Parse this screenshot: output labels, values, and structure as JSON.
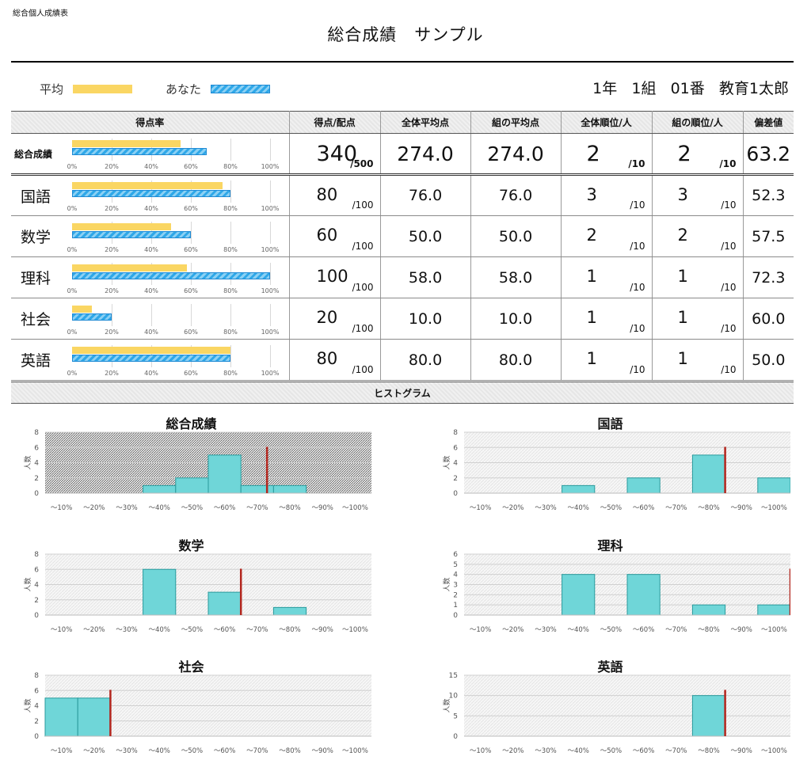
{
  "doc_label": "総合個人成績表",
  "title": "総合成績　サンプル",
  "legend": {
    "avg": "平均",
    "you": "あなた"
  },
  "student": {
    "grade": "1年",
    "class": "1組",
    "number": "01番",
    "name": "教育1太郎"
  },
  "colors": {
    "avg_bar": "#fad663",
    "you_bar": "#2fa8e8",
    "hist_bar": "#6fd6d8",
    "marker": "#b3261e"
  },
  "table": {
    "headers": [
      "",
      "得点率",
      "得点/配点",
      "全体平均点",
      "組の平均点",
      "全体順位/人",
      "組の順位/人",
      "偏差値"
    ],
    "rate_ticks": [
      "0%",
      "20%",
      "40%",
      "60%",
      "80%",
      "100%"
    ],
    "rows": [
      {
        "subject": "総合成績",
        "avg_rate": 54.8,
        "you_rate": 68,
        "score": "340",
        "max": "/500",
        "overall_avg": "274.0",
        "class_avg": "274.0",
        "rank": "2",
        "rank_total": "/10",
        "class_rank": "2",
        "class_total": "/10",
        "deviation": "63.2"
      },
      {
        "subject": "国語",
        "avg_rate": 76,
        "you_rate": 80,
        "score": "80",
        "max": "/100",
        "overall_avg": "76.0",
        "class_avg": "76.0",
        "rank": "3",
        "rank_total": "/10",
        "class_rank": "3",
        "class_total": "/10",
        "deviation": "52.3"
      },
      {
        "subject": "数学",
        "avg_rate": 50,
        "you_rate": 60,
        "score": "60",
        "max": "/100",
        "overall_avg": "50.0",
        "class_avg": "50.0",
        "rank": "2",
        "rank_total": "/10",
        "class_rank": "2",
        "class_total": "/10",
        "deviation": "57.5"
      },
      {
        "subject": "理科",
        "avg_rate": 58,
        "you_rate": 100,
        "score": "100",
        "max": "/100",
        "overall_avg": "58.0",
        "class_avg": "58.0",
        "rank": "1",
        "rank_total": "/10",
        "class_rank": "1",
        "class_total": "/10",
        "deviation": "72.3"
      },
      {
        "subject": "社会",
        "avg_rate": 10,
        "you_rate": 20,
        "score": "20",
        "max": "/100",
        "overall_avg": "10.0",
        "class_avg": "10.0",
        "rank": "1",
        "rank_total": "/10",
        "class_rank": "1",
        "class_total": "/10",
        "deviation": "60.0"
      },
      {
        "subject": "英語",
        "avg_rate": 80,
        "you_rate": 80,
        "score": "80",
        "max": "/100",
        "overall_avg": "80.0",
        "class_avg": "80.0",
        "rank": "1",
        "rank_total": "/10",
        "class_rank": "1",
        "class_total": "/10",
        "deviation": "50.0"
      }
    ]
  },
  "histogram_header": "ヒストグラム",
  "chart_data": [
    {
      "type": "bar",
      "title": "総合成績",
      "ylabel": "人数",
      "categories": [
        "〜10%",
        "〜20%",
        "〜30%",
        "〜40%",
        "〜50%",
        "〜60%",
        "〜70%",
        "〜80%",
        "〜90%",
        "〜100%"
      ],
      "values": [
        0,
        0,
        0,
        1,
        2,
        5,
        1,
        1,
        0,
        0
      ],
      "ylim": [
        0,
        8
      ],
      "yticks": [
        0,
        2,
        4,
        6,
        8
      ],
      "marker_x": 6.8,
      "hatched_background": true
    },
    {
      "type": "bar",
      "title": "国語",
      "ylabel": "人数",
      "categories": [
        "〜10%",
        "〜20%",
        "〜30%",
        "〜40%",
        "〜50%",
        "〜60%",
        "〜70%",
        "〜80%",
        "〜90%",
        "〜100%"
      ],
      "values": [
        0,
        0,
        0,
        1,
        0,
        2,
        0,
        5,
        0,
        2
      ],
      "ylim": [
        0,
        8
      ],
      "yticks": [
        0,
        2,
        4,
        6,
        8
      ],
      "marker_x": 8.0,
      "hatched_background": false
    },
    {
      "type": "bar",
      "title": "数学",
      "ylabel": "人数",
      "categories": [
        "〜10%",
        "〜20%",
        "〜30%",
        "〜40%",
        "〜50%",
        "〜60%",
        "〜70%",
        "〜80%",
        "〜90%",
        "〜100%"
      ],
      "values": [
        0,
        0,
        0,
        6,
        0,
        3,
        0,
        1,
        0,
        0
      ],
      "ylim": [
        0,
        8
      ],
      "yticks": [
        0,
        2,
        4,
        6,
        8
      ],
      "marker_x": 6.0,
      "hatched_background": false
    },
    {
      "type": "bar",
      "title": "理科",
      "ylabel": "人数",
      "categories": [
        "〜10%",
        "〜20%",
        "〜30%",
        "〜40%",
        "〜50%",
        "〜60%",
        "〜70%",
        "〜80%",
        "〜90%",
        "〜100%"
      ],
      "values": [
        0,
        0,
        0,
        4,
        0,
        4,
        0,
        1,
        0,
        1
      ],
      "ylim": [
        0,
        6
      ],
      "yticks": [
        0,
        1,
        2,
        3,
        4,
        5,
        6
      ],
      "marker_x": 10.0,
      "hatched_background": false
    },
    {
      "type": "bar",
      "title": "社会",
      "ylabel": "人数",
      "categories": [
        "〜10%",
        "〜20%",
        "〜30%",
        "〜40%",
        "〜50%",
        "〜60%",
        "〜70%",
        "〜80%",
        "〜90%",
        "〜100%"
      ],
      "values": [
        5,
        5,
        0,
        0,
        0,
        0,
        0,
        0,
        0,
        0
      ],
      "ylim": [
        0,
        8
      ],
      "yticks": [
        0,
        2,
        4,
        6,
        8
      ],
      "marker_x": 2.0,
      "hatched_background": false
    },
    {
      "type": "bar",
      "title": "英語",
      "ylabel": "人数",
      "categories": [
        "〜10%",
        "〜20%",
        "〜30%",
        "〜40%",
        "〜50%",
        "〜60%",
        "〜70%",
        "〜80%",
        "〜90%",
        "〜100%"
      ],
      "values": [
        0,
        0,
        0,
        0,
        0,
        0,
        0,
        10,
        0,
        0
      ],
      "ylim": [
        0,
        15
      ],
      "yticks": [
        0,
        5,
        10,
        15
      ],
      "marker_x": 8.0,
      "hatched_background": false
    }
  ]
}
